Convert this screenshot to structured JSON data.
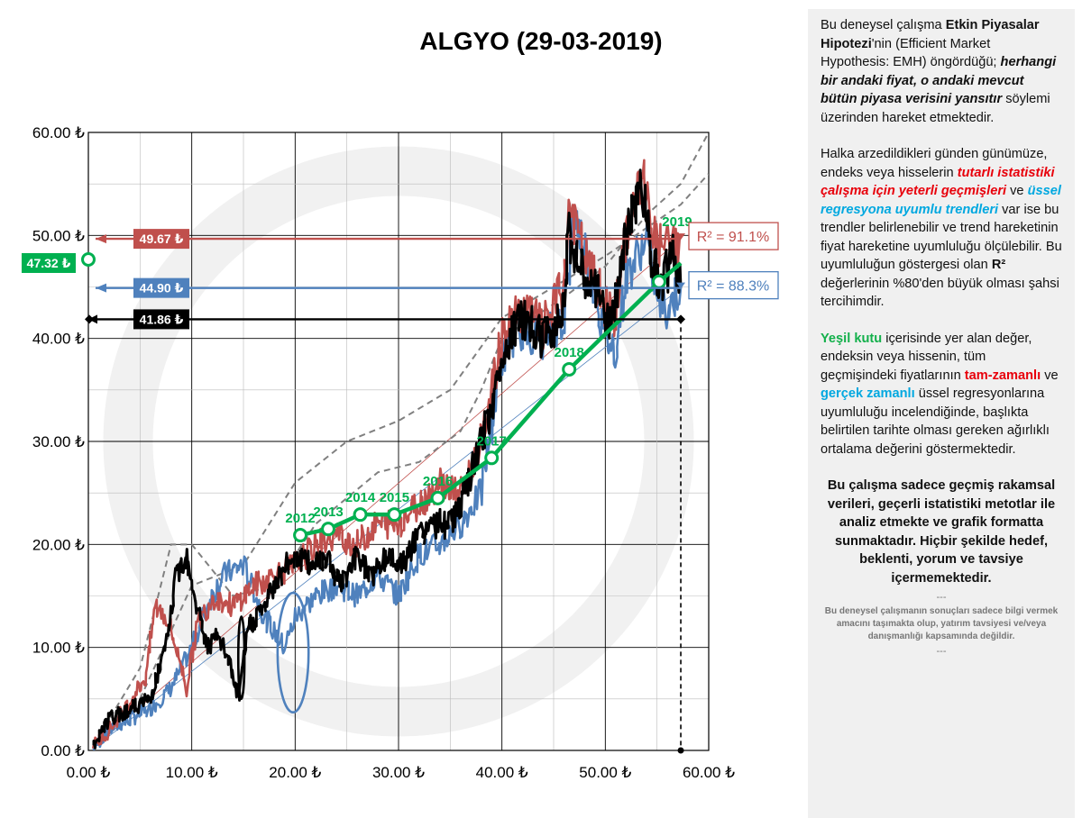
{
  "title": "ALGYO (29-03-2019)",
  "colors": {
    "red": "#c0504d",
    "blue": "#4f81bd",
    "green": "#00b050",
    "black": "#000000",
    "grey": "#808080"
  },
  "side": {
    "p1": {
      "a": "Bu deneysel çalışma ",
      "b": "Etkin Piyasalar Hipotezi",
      "c": "'nin (Efficient Market Hypothesis: EMH) öngördüğü; ",
      "d": "herhangi bir andaki fiyat, o andaki mevcut bütün piyasa verisini yansıtır",
      "e": "  söylemi üzerinden hareket etmektedir."
    },
    "p2": {
      "a": "Halka arzedildikleri günden günümüze, endeks veya hisselerin ",
      "b": "tutarlı istatistiki çalışma için yeterli geçmişleri",
      "c": " ve ",
      "d": "üssel regresyona uyumlu trendleri",
      "e": " var ise bu trendler belirlenebilir ve trend hareketinin fiyat hareketine uyumluluğu ölçülebilir.  Bu uyumluluğun göstergesi olan ",
      "f": "R²",
      "g": " değerlerinin %80'den büyük olması şahsi tercihimdir."
    },
    "p3": {
      "a": "Yeşil kutu",
      "b": " içerisinde yer alan değer, endeksin veya hissenin, tüm geçmişindeki fiyatlarının ",
      "c": "tam-zamanlı",
      "d": " ve ",
      "e": "gerçek zamanlı",
      "f": " üssel regresyonlarına uyumluluğu incelendiğinde, başlıkta belirtilen tarihte olması gereken ağırlıklı ortalama değerini göstermektedir."
    },
    "p4": "Bu çalışma sadece geçmiş rakamsal verileri, geçerli istatistiki metotlar ile  analiz etmekte ve grafik formatta sunmaktadır. Hiçbir şekilde hedef, beklenti, yorum ve tavsiye içermemektedir.",
    "dash1": "---",
    "disclaimer": "Bu deneysel çalışmanın sonuçları sadece bilgi vermek amacını taşımakta olup, yatırım tavsiyesi ve/veya danışmanlığı kapsamında değildir.",
    "dash2": "---"
  },
  "chart_data": {
    "type": "line",
    "title": "ALGYO (29-03-2019)",
    "xlim": [
      0,
      60
    ],
    "ylim": [
      0,
      60
    ],
    "x_ticks": [
      "0.00 ₺",
      "10.00 ₺",
      "20.00 ₺",
      "30.00 ₺",
      "40.00 ₺",
      "50.00 ₺",
      "60.00 ₺"
    ],
    "y_ticks": [
      "0.00 ₺",
      "10.00 ₺",
      "20.00 ₺",
      "30.00 ₺",
      "40.00 ₺",
      "50.00 ₺",
      "60.00 ₺"
    ],
    "grid": true,
    "hlines": [
      {
        "name": "red",
        "value": 49.67,
        "label": "49.67 ₺"
      },
      {
        "name": "blue",
        "value": 44.9,
        "label": "44.90 ₺"
      },
      {
        "name": "black",
        "value": 41.86,
        "label": "41.86 ₺"
      }
    ],
    "green_value": {
      "value": 47.32,
      "label": "47.32 ₺"
    },
    "r2": [
      {
        "name": "red",
        "label": "R² = 91.1%"
      },
      {
        "name": "blue",
        "label": "R² = 88.3%"
      }
    ],
    "vline_x": 57.3,
    "weighted_average": {
      "years": [
        "2012",
        "2013",
        "2014",
        "2015",
        "2016",
        "2017",
        "2018",
        "2019"
      ],
      "points": [
        [
          20.5,
          20.9
        ],
        [
          23.2,
          21.5
        ],
        [
          26.3,
          22.9
        ],
        [
          29.6,
          22.9
        ],
        [
          33.8,
          24.5
        ],
        [
          39.0,
          28.4
        ],
        [
          46.5,
          37.0
        ],
        [
          55.2,
          45.5
        ]
      ],
      "end": [
        57.3,
        47.3
      ]
    },
    "price_anchors": [
      [
        0.5,
        0.3
      ],
      [
        2,
        3
      ],
      [
        4,
        4
      ],
      [
        6,
        5
      ],
      [
        7.5,
        10
      ],
      [
        8.5,
        17
      ],
      [
        9.5,
        19
      ],
      [
        10.5,
        14
      ],
      [
        11.5,
        10
      ],
      [
        12.5,
        11
      ],
      [
        13.5,
        9
      ],
      [
        14.5,
        5
      ],
      [
        15.5,
        12
      ],
      [
        17,
        14
      ],
      [
        18.5,
        17
      ],
      [
        20,
        19
      ],
      [
        21.5,
        18
      ],
      [
        23,
        19
      ],
      [
        24.5,
        16
      ],
      [
        26,
        19
      ],
      [
        27.5,
        17
      ],
      [
        29,
        19
      ],
      [
        30.5,
        18
      ],
      [
        32,
        21
      ],
      [
        33.5,
        22
      ],
      [
        35,
        22
      ],
      [
        36.5,
        25
      ],
      [
        38,
        30
      ],
      [
        39,
        33
      ],
      [
        40,
        38
      ],
      [
        41,
        41
      ],
      [
        42,
        42
      ],
      [
        43,
        41
      ],
      [
        44,
        40
      ],
      [
        45,
        41
      ],
      [
        46,
        44
      ],
      [
        46.5,
        50
      ],
      [
        47.5,
        47
      ],
      [
        48.5,
        45
      ],
      [
        49.5,
        44
      ],
      [
        50.5,
        41
      ],
      [
        51.5,
        47
      ],
      [
        52.5,
        52
      ],
      [
        53.5,
        55
      ],
      [
        54.5,
        48
      ],
      [
        55.5,
        45
      ],
      [
        56.5,
        48
      ],
      [
        57.3,
        44.9
      ]
    ],
    "red_anchors": [
      [
        0.5,
        0.5
      ],
      [
        2,
        2
      ],
      [
        3.5,
        4
      ],
      [
        5.5,
        7
      ],
      [
        6.5,
        14
      ],
      [
        7.5,
        13
      ],
      [
        8.5,
        10
      ],
      [
        9.5,
        6
      ],
      [
        10.5,
        12
      ],
      [
        12,
        15
      ],
      [
        14,
        14
      ],
      [
        16,
        16
      ],
      [
        18,
        17
      ],
      [
        20,
        18
      ],
      [
        22,
        20
      ],
      [
        24,
        21
      ],
      [
        26,
        20
      ],
      [
        28,
        22
      ],
      [
        30,
        22
      ],
      [
        32,
        24
      ],
      [
        34,
        26
      ],
      [
        36,
        25
      ],
      [
        38,
        30
      ],
      [
        40,
        40
      ],
      [
        42,
        43
      ],
      [
        44,
        41
      ],
      [
        46,
        45
      ],
      [
        46.5,
        53
      ],
      [
        48,
        48
      ],
      [
        50,
        43
      ],
      [
        51,
        42
      ],
      [
        52,
        50
      ],
      [
        53.5,
        56
      ],
      [
        55,
        49
      ],
      [
        56.3,
        49
      ],
      [
        57.3,
        49.7
      ]
    ],
    "blue_anchors": [
      [
        0.5,
        0.2
      ],
      [
        2,
        2
      ],
      [
        4,
        3
      ],
      [
        6,
        4
      ],
      [
        8,
        6
      ],
      [
        10,
        10
      ],
      [
        11.5,
        14
      ],
      [
        13,
        17
      ],
      [
        15,
        18
      ],
      [
        17,
        13
      ],
      [
        19,
        10
      ],
      [
        20,
        13
      ],
      [
        22,
        15
      ],
      [
        24,
        16
      ],
      [
        26,
        15
      ],
      [
        28,
        17
      ],
      [
        30,
        15
      ],
      [
        32,
        19
      ],
      [
        34,
        20
      ],
      [
        36,
        22
      ],
      [
        38,
        25
      ],
      [
        40,
        38
      ],
      [
        41.5,
        41
      ],
      [
        44,
        40
      ],
      [
        46,
        42
      ],
      [
        47,
        52
      ],
      [
        48,
        49
      ],
      [
        50,
        40
      ],
      [
        51,
        39
      ],
      [
        52,
        46
      ],
      [
        54,
        50
      ],
      [
        55,
        44
      ],
      [
        56,
        43
      ],
      [
        57.3,
        44.9
      ]
    ],
    "grey_dashed": [
      [
        [
          0.5,
          0.5
        ],
        [
          5,
          8
        ],
        [
          8,
          20
        ],
        [
          10,
          20
        ],
        [
          14,
          15
        ],
        [
          18,
          16
        ],
        [
          22,
          22
        ],
        [
          28,
          27
        ],
        [
          32,
          28
        ],
        [
          36,
          31
        ],
        [
          38,
          35
        ],
        [
          40,
          40
        ],
        [
          46,
          44
        ],
        [
          50,
          47
        ],
        [
          54,
          52
        ],
        [
          57.3,
          55
        ],
        [
          60,
          60
        ]
      ],
      [
        [
          5,
          5
        ],
        [
          10,
          16
        ],
        [
          15,
          18
        ],
        [
          20,
          26
        ],
        [
          25,
          30
        ],
        [
          30,
          32
        ],
        [
          35,
          35
        ],
        [
          40,
          42
        ],
        [
          50,
          48
        ],
        [
          57.3,
          53
        ],
        [
          60,
          56
        ]
      ]
    ],
    "loops": [
      {
        "color": "blue",
        "cx": 19.8,
        "cy": 9.5,
        "rx": 1.5,
        "ry": 5.8
      },
      {
        "color": "black",
        "cx": 14.8,
        "cy": 9.0,
        "rx": 0.3,
        "ry": 4.0
      }
    ]
  }
}
